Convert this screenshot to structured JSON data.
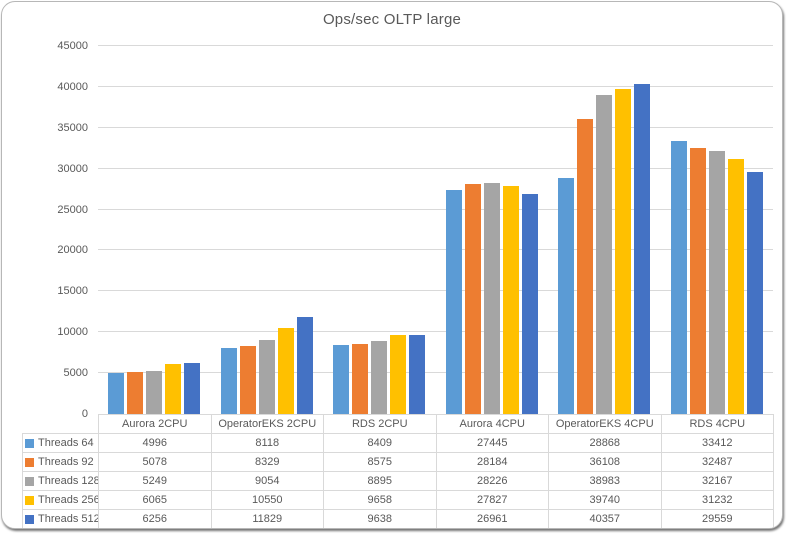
{
  "chart_data": {
    "type": "bar",
    "title": "Ops/sec OLTP large",
    "categories": [
      "Aurora 2CPU",
      "OperatorEKS 2CPU",
      "RDS 2CPU",
      "Aurora 4CPU",
      "OperatorEKS 4CPU",
      "RDS 4CPU"
    ],
    "series": [
      {
        "name": "Threads 64",
        "color": "#5B9BD5",
        "values": [
          4996,
          8118,
          8409,
          27445,
          28868,
          33412
        ]
      },
      {
        "name": "Threads 92",
        "color": "#ED7D31",
        "values": [
          5078,
          8329,
          8575,
          28184,
          36108,
          32487
        ]
      },
      {
        "name": "Threads 128",
        "color": "#A5A5A5",
        "values": [
          5249,
          9054,
          8895,
          28226,
          38983,
          32167
        ]
      },
      {
        "name": "Threads 256",
        "color": "#FFC000",
        "values": [
          6065,
          10550,
          9658,
          27827,
          39740,
          31232
        ]
      },
      {
        "name": "Threads 512",
        "color": "#4472C4",
        "values": [
          6256,
          11829,
          9638,
          26961,
          40357,
          29559
        ]
      }
    ],
    "y_axis": {
      "min": 0,
      "max": 45000,
      "step": 5000,
      "ticks": [
        45000,
        40000,
        35000,
        30000,
        25000,
        20000,
        15000,
        10000,
        5000,
        0
      ]
    },
    "grid": true,
    "legend_position": "data-table-left"
  },
  "styles": {
    "title_color": "#595959",
    "axis_text_color": "#595959",
    "gridline_color": "#D9D9D9",
    "table_border_color": "#D9D9D9",
    "frame_border_color": "#B7B7B7",
    "background": "#FFFFFF"
  }
}
